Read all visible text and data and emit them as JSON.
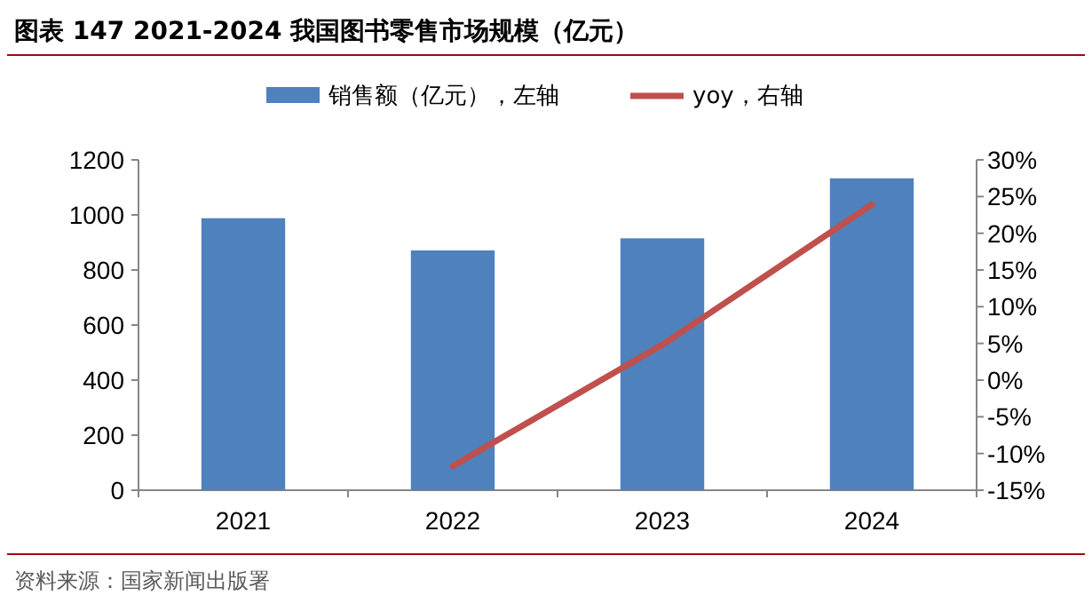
{
  "chart_data": {
    "type": "bar",
    "title": "图表 147 2021-2024 我国图书零售市场规模（亿元）",
    "categories": [
      "2021",
      "2022",
      "2023",
      "2024"
    ],
    "series": [
      {
        "name": "销售额（亿元），左轴",
        "color": "#4f81bd",
        "values": [
          988,
          871,
          915,
          1133
        ]
      },
      {
        "name": "yoy，右轴",
        "type": "line",
        "axis": "y2",
        "color": "#c0504d",
        "values": [
          null,
          -11.7,
          4.8,
          23.9
        ]
      }
    ],
    "ylim": [
      0,
      1200
    ],
    "yticks": [
      0,
      200,
      400,
      600,
      800,
      1000,
      1200
    ],
    "y2lim": [
      -15,
      30
    ],
    "y2ticks": [
      {
        "value": -15,
        "label": "-15%"
      },
      {
        "value": -10,
        "label": "-10%"
      },
      {
        "value": -5,
        "label": "-5%"
      },
      {
        "value": 0,
        "label": "0%"
      },
      {
        "value": 5,
        "label": "5%"
      },
      {
        "value": 10,
        "label": "10%"
      },
      {
        "value": 15,
        "label": "15%"
      },
      {
        "value": 20,
        "label": "20%"
      },
      {
        "value": 25,
        "label": "25%"
      },
      {
        "value": 30,
        "label": "30%"
      }
    ],
    "legend": "top",
    "marker": "none",
    "line_style": "solid",
    "annotations": [
      "资料来源：国家新闻出版署"
    ]
  }
}
